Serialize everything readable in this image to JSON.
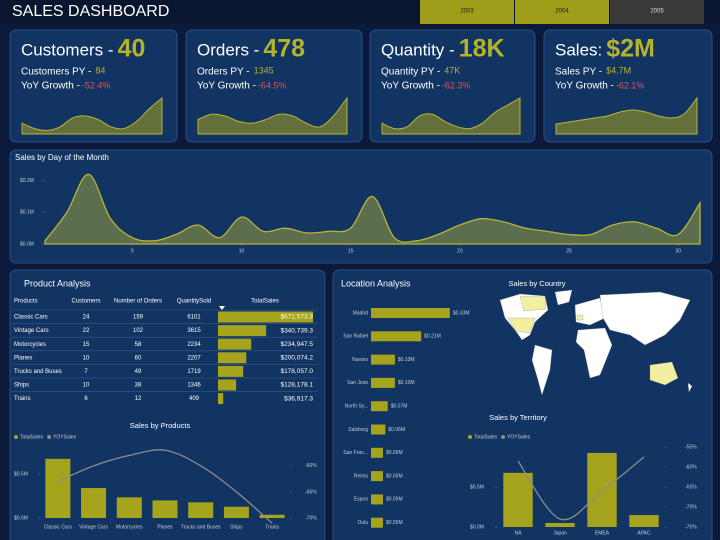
{
  "header": {
    "title": "SALES DASHBOARD"
  },
  "year_filter": [
    {
      "label": "2003",
      "selected": true
    },
    {
      "label": "2004",
      "selected": true
    },
    {
      "label": "2005",
      "selected": false
    }
  ],
  "kpis": [
    {
      "title": "Customers -",
      "value": "40",
      "py_label": "Customers PY -",
      "py_value": "84",
      "yoy_label": "YoY Growth -",
      "yoy_value": "-52.4%",
      "sparkline": [
        0.3,
        0.15,
        0.1,
        0.2,
        0.45,
        0.5,
        0.4,
        0.2,
        0.15,
        0.35,
        0.7,
        1.0
      ]
    },
    {
      "title": "Orders -",
      "value": "478",
      "py_label": "Orders PY -",
      "py_value": "1345",
      "yoy_label": "YoY Growth -",
      "yoy_value": "-64.5%",
      "sparkline": [
        0.4,
        0.55,
        0.5,
        0.35,
        0.3,
        0.4,
        0.55,
        0.5,
        0.3,
        0.2,
        0.5,
        1.0
      ]
    },
    {
      "title": "Quantity -",
      "value": "18K",
      "py_label": "Quantity PY -",
      "py_value": "47K",
      "yoy_label": "YoY Growth -",
      "yoy_value": "-62.3%",
      "sparkline": [
        0.3,
        0.15,
        0.2,
        0.5,
        0.55,
        0.35,
        0.2,
        0.15,
        0.3,
        0.6,
        0.8,
        1.0
      ]
    },
    {
      "title": "Sales:",
      "value": "$2M",
      "py_label": "Sales PY -",
      "py_value": "$4.7M",
      "yoy_label": "YoY Growth -",
      "yoy_value": "-62.1%",
      "sparkline": [
        0.25,
        0.3,
        0.35,
        0.4,
        0.45,
        0.55,
        0.6,
        0.55,
        0.45,
        0.4,
        0.5,
        0.9
      ]
    }
  ],
  "day_chart": {
    "type": "area",
    "title": "Sales by Day of the Month",
    "color": "#b8b536",
    "x": [
      1,
      2,
      3,
      4,
      5,
      6,
      7,
      8,
      9,
      10,
      11,
      12,
      13,
      14,
      15,
      16,
      17,
      18,
      19,
      20,
      21,
      22,
      23,
      24,
      25,
      26,
      27,
      28,
      29,
      30,
      31
    ],
    "values": [
      0.01,
      0.1,
      0.22,
      0.08,
      0.02,
      0.01,
      0.03,
      0.06,
      0.02,
      0.085,
      0.04,
      0.05,
      0.035,
      0.04,
      0.05,
      0.15,
      0.02,
      0.01,
      0.03,
      0.06,
      0.08,
      0.07,
      0.05,
      0.04,
      0.03,
      0.03,
      0.06,
      0.07,
      0.05,
      0.03,
      0.13
    ],
    "xlim": [
      1,
      31
    ],
    "ylim": [
      0,
      0.24
    ],
    "xticks": [
      5,
      10,
      15,
      20,
      25,
      30
    ],
    "yticks": [
      {
        "value": 0,
        "label": "$0.0M"
      },
      {
        "value": 0.1,
        "label": "$0.1M"
      },
      {
        "value": 0.2,
        "label": "$0.2M"
      }
    ]
  },
  "product_analysis": {
    "title": "Product Analysis",
    "table": {
      "columns": [
        "Products",
        "Customers",
        "Number of Orders",
        "QuantitySold",
        "TotalSales"
      ],
      "rows": [
        [
          "Classic Cars",
          24,
          159,
          6101,
          672573.3
        ],
        [
          "Vintage Cars",
          22,
          102,
          3615,
          340739.3
        ],
        [
          "Motorcycles",
          15,
          58,
          2234,
          234947.5
        ],
        [
          "Planes",
          10,
          60,
          2207,
          200074.2
        ],
        [
          "Trucks and Buses",
          7,
          49,
          1719,
          178057.0
        ],
        [
          "Ships",
          10,
          38,
          1346,
          128178.1
        ],
        [
          "Trains",
          6,
          12,
          409,
          36917.3
        ]
      ],
      "value_labels": [
        "$672,573.3",
        "$340,739.3",
        "$234,947.5",
        "$200,074.2",
        "$178,057.0",
        "$128,178.1",
        "$36,917.3"
      ],
      "bar_color": "#a6a31c"
    }
  },
  "products_chart": {
    "type": "bar",
    "title": "Sales by Products",
    "categories": [
      "Classic Cars",
      "Vintage Cars",
      "Motorcycles",
      "Planes",
      "Trucks and Buses",
      "Ships",
      "Trains"
    ],
    "series": [
      {
        "name": "TotalSales",
        "color": "#a6a31c",
        "values": [
          0.6725733,
          0.3407393,
          0.2349475,
          0.2000742,
          0.178057,
          0.1281781,
          0.0369173
        ]
      },
      {
        "name": "YOYSales",
        "color": "#8c8c8c",
        "axis": "y2",
        "values": [
          -63,
          -60,
          -58,
          -57,
          -60,
          -65,
          -71
        ]
      }
    ],
    "ylim": [
      0,
      0.83
    ],
    "yticks": [
      {
        "value": 0,
        "label": "$0.0M"
      },
      {
        "value": 0.5,
        "label": "$0.5M"
      }
    ],
    "y2lim": [
      -70,
      -56
    ],
    "y2ticks": [
      {
        "value": -60,
        "label": "-60%"
      },
      {
        "value": -65,
        "label": "-65%"
      },
      {
        "value": -70,
        "label": "-70%"
      }
    ]
  },
  "location_chart": {
    "type": "bar",
    "title": "Location Analysis",
    "color": "#a6a31c",
    "categories": [
      "Madrid",
      "San Rafael",
      "Nantes",
      "San Jose",
      "North Sy...",
      "Salzburg",
      "San Fran...",
      "Reims",
      "Espoo",
      "Oulu"
    ],
    "values": [
      0.33,
      0.21,
      0.1,
      0.1,
      0.07,
      0.06,
      0.05,
      0.05,
      0.05,
      0.05
    ],
    "value_labels": [
      "$0.33M",
      "$0.21M",
      "$0.10M",
      "$0.10M",
      "$0.07M",
      "$0.06M",
      "$0.05M",
      "$0.05M",
      "$0.05M",
      "$0.05M"
    ],
    "xlim": [
      0,
      0.36
    ]
  },
  "map": {
    "title": "Sales by Country"
  },
  "territory_chart": {
    "type": "bar",
    "title": "Sales by Territory",
    "categories": [
      "NA",
      "Japan",
      "EMEA",
      "APAC"
    ],
    "series": [
      {
        "name": "TotalSales",
        "color": "#a6a31c",
        "values": [
          0.68,
          0.05,
          0.93,
          0.15
        ]
      },
      {
        "name": "YOYSales",
        "color": "#8c8c8c",
        "axis": "y2",
        "values": [
          -58.5,
          -73,
          -66,
          -57.5
        ]
      }
    ],
    "ylim": [
      0,
      1.03
    ],
    "yticks": [
      {
        "value": 0,
        "label": "$0.0M"
      },
      {
        "value": 0.5,
        "label": "$0.5M"
      }
    ],
    "y2lim": [
      -75,
      -54.5
    ],
    "y2ticks": [
      {
        "value": -55,
        "label": "-55%"
      },
      {
        "value": -60,
        "label": "-60%"
      },
      {
        "value": -65,
        "label": "-65%"
      },
      {
        "value": -70,
        "label": "-70%"
      },
      {
        "value": -75,
        "label": "-75%"
      }
    ]
  }
}
